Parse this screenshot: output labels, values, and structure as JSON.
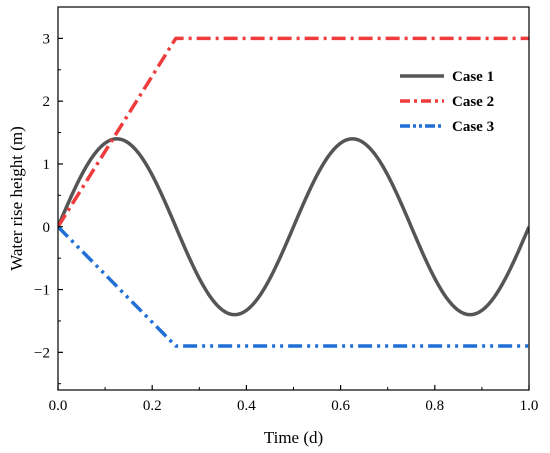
{
  "chart_data": {
    "type": "line",
    "xlabel": "Time  (d)",
    "ylabel": "Water rise height  (m)",
    "xlim": [
      0,
      1
    ],
    "ylim": [
      -2.6,
      3.5
    ],
    "xticks": [
      0.0,
      0.2,
      0.4,
      0.6,
      0.8,
      1.0
    ],
    "xtick_labels": [
      "0.0",
      "0.2",
      "0.4",
      "0.6",
      "0.8",
      "1.0"
    ],
    "yticks": [
      -2,
      -1,
      0,
      1,
      2,
      3
    ],
    "ytick_labels": [
      "−2",
      "−1",
      "0",
      "1",
      "2",
      "3"
    ],
    "grid": false,
    "legend_position": "top-right",
    "series": [
      {
        "name": "Case 1",
        "color": "#555555",
        "style": "solid",
        "shape": "sine",
        "amplitude": 1.4,
        "period": 0.5
      },
      {
        "name": "Case 2",
        "color": "#ee3b3b",
        "style": "dash-dot",
        "x": [
          0,
          0.25,
          1.0
        ],
        "y": [
          0,
          3.0,
          3.0
        ]
      },
      {
        "name": "Case 3",
        "color": "#1f6fd6",
        "style": "dash-dot-dot",
        "x": [
          0,
          0.25,
          1.0
        ],
        "y": [
          0,
          -1.9,
          -1.9
        ]
      }
    ]
  }
}
